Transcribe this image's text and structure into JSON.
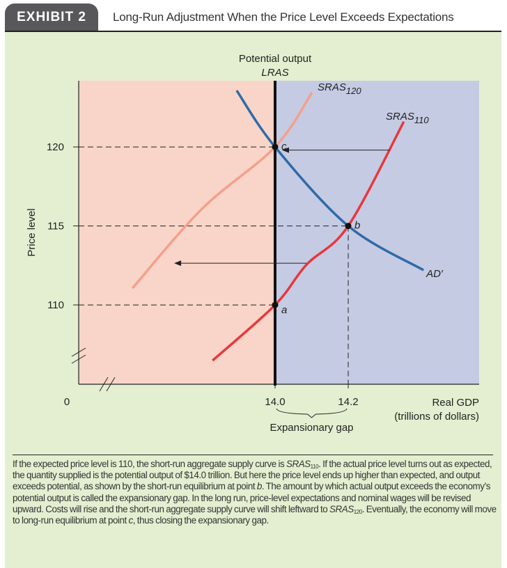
{
  "header": {
    "exhibit": "EXHIBIT 2",
    "title": "Long-Run Adjustment When the Price Level Exceeds Expectations"
  },
  "chart_data": {
    "type": "line",
    "xlabel": "Real GDP\n(trillions of dollars)",
    "xlabel_lines": [
      "Real GDP",
      "(trillions of dollars)"
    ],
    "ylabel": "Price level",
    "origin_label": "0",
    "xlim": [
      13.463,
      14.558
    ],
    "ylim": [
      104.98,
      124.19
    ],
    "x_ticks": [
      {
        "value": 14.0,
        "label": "14.0"
      },
      {
        "value": 14.2,
        "label": "14.2"
      }
    ],
    "y_ticks": [
      {
        "value": 110,
        "label": "110"
      },
      {
        "value": 115,
        "label": "115"
      },
      {
        "value": 120,
        "label": "120"
      }
    ],
    "lras": {
      "x": 14.0,
      "label_top": "Potential output",
      "label": "LRAS"
    },
    "regions": [
      {
        "from": 13.463,
        "to": 14.0,
        "color": "#f8d5c8"
      },
      {
        "from": 14.0,
        "to": 14.558,
        "color": "#c5cbe3"
      }
    ],
    "series": [
      {
        "name": "SRAS",
        "sub": "110",
        "color": "#e8383c",
        "points": [
          [
            13.829,
            106.48
          ],
          [
            14.0,
            110
          ],
          [
            14.086,
            112.55
          ],
          [
            14.2,
            115
          ],
          [
            14.352,
            121.6
          ]
        ]
      },
      {
        "name": "SRAS",
        "sub": "120",
        "color": "#f4a08c",
        "points": [
          [
            13.61,
            111.06
          ],
          [
            13.8,
            116.08
          ],
          [
            14.0,
            120
          ],
          [
            14.101,
            123.44
          ]
        ]
      },
      {
        "name": "AD′",
        "color": "#2f6aa8",
        "points": [
          [
            13.895,
            123.57
          ],
          [
            14.0,
            120
          ],
          [
            14.2,
            115
          ],
          [
            14.406,
            112.2
          ]
        ]
      }
    ],
    "points": [
      {
        "label": "a",
        "x": 14.0,
        "y": 110
      },
      {
        "label": "b",
        "x": 14.2,
        "y": 115
      },
      {
        "label": "c",
        "x": 14.0,
        "y": 120
      }
    ],
    "arrows": [
      {
        "from": [
          14.314,
          119.8
        ],
        "to": [
          14.019,
          119.8
        ]
      },
      {
        "from": [
          14.086,
          112.64
        ],
        "to": [
          13.724,
          112.64
        ]
      }
    ],
    "annotation": "Expansionary gap",
    "grid": false
  },
  "caption": {
    "p1": "If the expected price level is 110, the short-run aggregate supply curve is ",
    "s1": "SRAS",
    "s1sub": "110",
    "p2": ". If the actual price level turns out as expected, the quantity supplied is the potential output of $14.0 trillion. But here the price level ends up higher than expected, and output exceeds potential, as shown by the short-run equilibrium at point ",
    "b": "b",
    "p3": ". The amount by which actual output exceeds the economy’s potential output is called the expansionary gap. In the long run, price-level expectations and nominal wages will be revised upward. Costs will rise and the short-run aggregate supply curve will shift leftward to ",
    "s2": "SRAS",
    "s2sub": "120",
    "p4": ". Eventually, the economy will move to long-run equilibrium at point ",
    "c": "c",
    "p5": ", thus closing the expansionary gap."
  }
}
